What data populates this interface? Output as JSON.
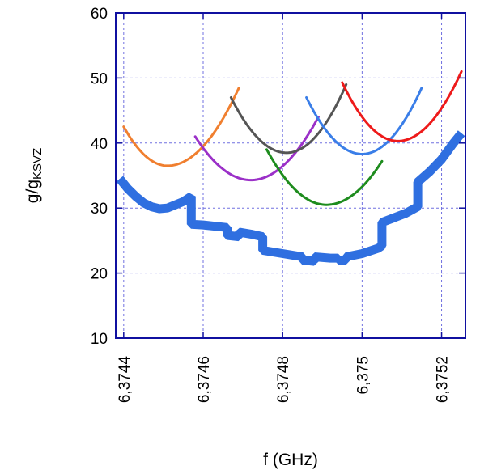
{
  "chart_data": {
    "type": "line",
    "xlabel": "f (GHz)",
    "ylabel_main": "g/g",
    "ylabel_sub": "KSVZ",
    "xlim": [
      6.37438,
      6.37526
    ],
    "ylim": [
      10,
      60
    ],
    "x_ticks": [
      6.3744,
      6.3746,
      6.3748,
      6.375,
      6.3752
    ],
    "x_tick_labels": [
      "6,3744",
      "6,3746",
      "6,3748",
      "6,375",
      "6,3752"
    ],
    "y_ticks": [
      10,
      20,
      30,
      40,
      50,
      60
    ],
    "y_tick_labels": [
      "10",
      "20",
      "30",
      "40",
      "50",
      "60"
    ],
    "grid": true,
    "series": [
      {
        "color": "#f07f2f",
        "style": "parabola",
        "x_min": 6.3744,
        "x_vertex": 6.37451,
        "x_max": 6.37469,
        "y_start": 42.5,
        "y_vertex": 36.5,
        "y_end": 48.5
      },
      {
        "color": "#9b30c8",
        "style": "parabola",
        "x_min": 6.37458,
        "x_vertex": 6.37472,
        "x_max": 6.37489,
        "y_start": 41.0,
        "y_vertex": 34.3,
        "y_end": 44.0
      },
      {
        "color": "#555555",
        "style": "parabola",
        "x_min": 6.37467,
        "x_vertex": 6.37481,
        "x_max": 6.37496,
        "y_start": 47.0,
        "y_vertex": 38.5,
        "y_end": 49.0
      },
      {
        "color": "#1e8c1e",
        "style": "parabola",
        "x_min": 6.37476,
        "x_vertex": 6.37491,
        "x_max": 6.37505,
        "y_start": 39.0,
        "y_vertex": 30.5,
        "y_end": 37.2
      },
      {
        "color": "#3a7ee8",
        "style": "parabola",
        "x_min": 6.37486,
        "x_vertex": 6.375,
        "x_max": 6.37515,
        "y_start": 47.0,
        "y_vertex": 38.3,
        "y_end": 48.5
      },
      {
        "color": "#ee1a1a",
        "style": "parabola",
        "x_min": 6.37495,
        "x_vertex": 6.37509,
        "x_max": 6.37525,
        "y_start": 49.3,
        "y_vertex": 40.3,
        "y_end": 51.0
      },
      {
        "color": "#2f6fe0",
        "style": "thick",
        "points": [
          [
            6.37439,
            34.5
          ],
          [
            6.37441,
            33.0
          ],
          [
            6.37443,
            31.8
          ],
          [
            6.37445,
            30.8
          ],
          [
            6.37447,
            30.2
          ],
          [
            6.37449,
            29.9
          ],
          [
            6.37451,
            30.0
          ],
          [
            6.37453,
            30.5
          ],
          [
            6.37455,
            31.0
          ],
          [
            6.37457,
            31.8
          ],
          [
            6.37457,
            27.5
          ],
          [
            6.3746,
            27.4
          ],
          [
            6.37463,
            27.2
          ],
          [
            6.37466,
            27.0
          ],
          [
            6.37466,
            25.8
          ],
          [
            6.37469,
            25.6
          ],
          [
            6.37469,
            26.3
          ],
          [
            6.37472,
            26.0
          ],
          [
            6.37475,
            25.6
          ],
          [
            6.37475,
            23.5
          ],
          [
            6.3748,
            23.0
          ],
          [
            6.37485,
            22.5
          ],
          [
            6.37485,
            22.0
          ],
          [
            6.37488,
            21.8
          ],
          [
            6.37488,
            22.5
          ],
          [
            6.37492,
            22.3
          ],
          [
            6.37494,
            22.3
          ],
          [
            6.37494,
            22.0
          ],
          [
            6.37496,
            22.0
          ],
          [
            6.37496,
            22.5
          ],
          [
            6.375,
            23.0
          ],
          [
            6.37504,
            23.8
          ],
          [
            6.37505,
            24.2
          ],
          [
            6.37505,
            27.8
          ],
          [
            6.37508,
            28.5
          ],
          [
            6.37511,
            29.2
          ],
          [
            6.37514,
            30.2
          ],
          [
            6.37514,
            34.0
          ],
          [
            6.37517,
            35.6
          ],
          [
            6.3752,
            37.5
          ],
          [
            6.37523,
            40.0
          ],
          [
            6.37525,
            41.5
          ]
        ]
      }
    ]
  }
}
